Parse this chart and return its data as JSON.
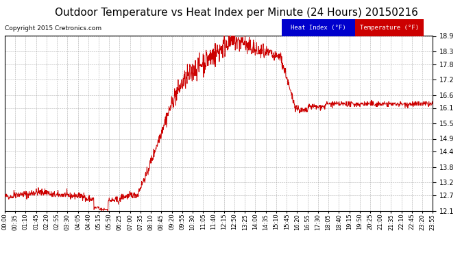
{
  "title": "Outdoor Temperature vs Heat Index per Minute (24 Hours) 20150216",
  "copyright": "Copyright 2015 Cretronics.com",
  "title_fontsize": 11,
  "background_color": "#ffffff",
  "plot_bg_color": "#ffffff",
  "grid_color": "#999999",
  "line_color": "#cc0000",
  "ylim_min": 12.1,
  "ylim_max": 18.9,
  "yticks": [
    12.1,
    12.7,
    13.2,
    13.8,
    14.4,
    14.9,
    15.5,
    16.1,
    16.6,
    17.2,
    17.8,
    18.3,
    18.9
  ],
  "xtick_labels": [
    "00:00",
    "00:35",
    "01:10",
    "01:45",
    "02:20",
    "02:55",
    "03:30",
    "04:05",
    "04:40",
    "05:15",
    "05:50",
    "06:25",
    "07:00",
    "07:35",
    "08:10",
    "08:45",
    "09:20",
    "09:55",
    "10:30",
    "11:05",
    "11:40",
    "12:15",
    "12:50",
    "13:25",
    "14:00",
    "14:35",
    "15:10",
    "15:45",
    "16:20",
    "16:55",
    "17:30",
    "18:05",
    "18:40",
    "19:15",
    "19:50",
    "20:25",
    "21:00",
    "21:35",
    "22:10",
    "22:45",
    "23:20",
    "23:55"
  ],
  "legend_heat_index_bg": "#0000cc",
  "legend_heat_index_text": "#ffffff",
  "legend_temp_bg": "#cc0000",
  "legend_temp_text": "#ffffff",
  "legend_heat_index_label": "Heat Index (°F)",
  "legend_temp_label": "Temperature (°F)"
}
